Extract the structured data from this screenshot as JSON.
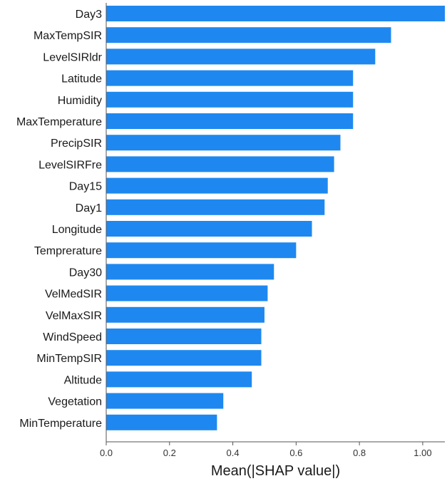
{
  "chart_data": {
    "type": "bar",
    "orientation": "horizontal",
    "title": "",
    "xlabel": "Mean(|SHAP value|)",
    "ylabel": "",
    "xlim": [
      0,
      1.07
    ],
    "xticks": [
      "0.0",
      "0.2",
      "0.4",
      "0.6",
      "0.8",
      "1.00"
    ],
    "xtick_values": [
      0.0,
      0.2,
      0.4,
      0.6,
      0.8,
      1.0
    ],
    "bar_color": "#1e88f0",
    "grid": false,
    "categories": [
      "Day3",
      "MaxTempSIR",
      "LevelSIRldr",
      "Latitude",
      "Humidity",
      "MaxTemperature",
      "PrecipSIR",
      "LevelSIRFre",
      "Day15",
      "Day1",
      "Longitude",
      "Temprerature",
      "Day30",
      "VelMedSIR",
      "VelMaxSIR",
      "WindSpeed",
      "MinTempSIR",
      "Altitude",
      "Vegetation",
      "MinTemperature"
    ],
    "values": [
      1.07,
      0.9,
      0.85,
      0.78,
      0.78,
      0.78,
      0.74,
      0.72,
      0.7,
      0.69,
      0.65,
      0.6,
      0.53,
      0.51,
      0.5,
      0.49,
      0.49,
      0.46,
      0.37,
      0.35
    ]
  }
}
